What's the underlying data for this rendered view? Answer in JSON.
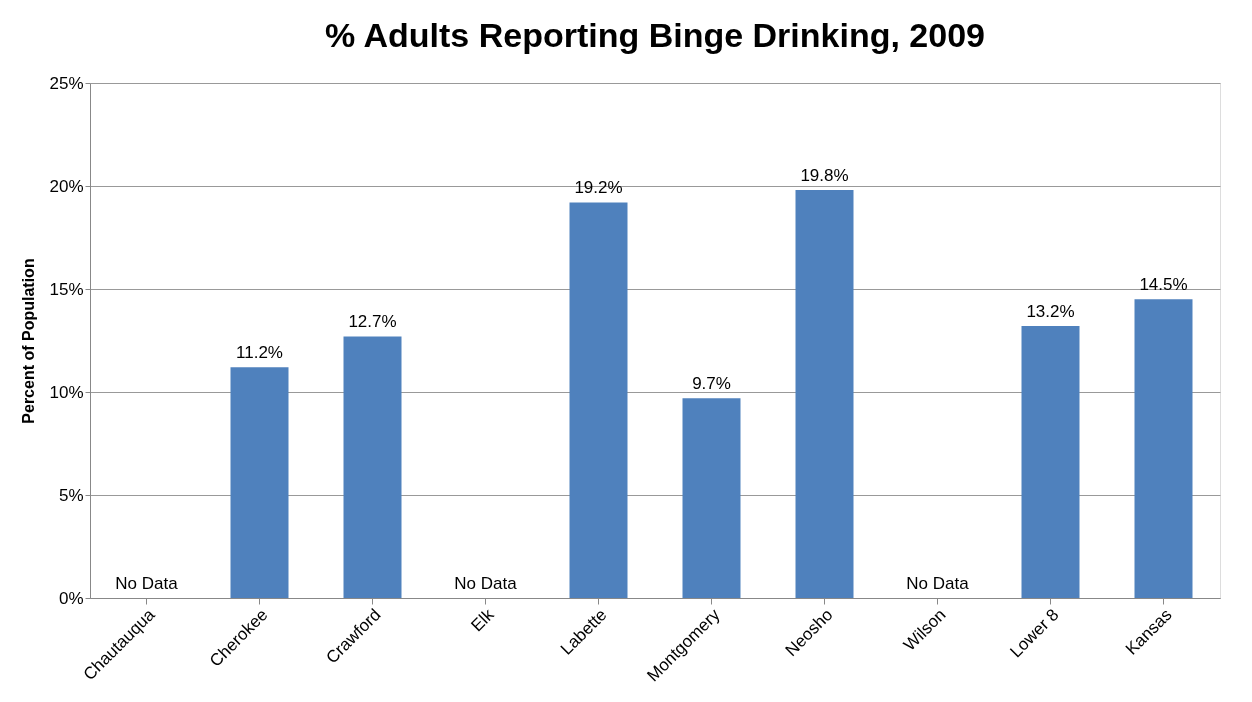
{
  "chart_data": {
    "type": "bar",
    "title": "% Adults Reporting Binge Drinking, 2009",
    "ylabel": "Percent of Population",
    "categories": [
      "Chautauqua",
      "Cherokee",
      "Crawford",
      "Elk",
      "Labette",
      "Montgomery",
      "Neosho",
      "Wilson",
      "Lower 8",
      "Kansas"
    ],
    "values": [
      null,
      11.2,
      12.7,
      null,
      19.2,
      9.7,
      19.8,
      null,
      13.2,
      14.5
    ],
    "value_labels": [
      "No Data",
      "11.2%",
      "12.7%",
      "No Data",
      "19.2%",
      "9.7%",
      "19.8%",
      "No Data",
      "13.2%",
      "14.5%"
    ],
    "color": "#4f81bd",
    "ylim": [
      0,
      25
    ],
    "yticks": [
      {
        "value": 0,
        "label": "0%"
      },
      {
        "value": 5,
        "label": "5%"
      },
      {
        "value": 10,
        "label": "10%"
      },
      {
        "value": 15,
        "label": "15%"
      },
      {
        "value": 20,
        "label": "20%"
      },
      {
        "value": 25,
        "label": "25%"
      }
    ],
    "grid": "y"
  }
}
